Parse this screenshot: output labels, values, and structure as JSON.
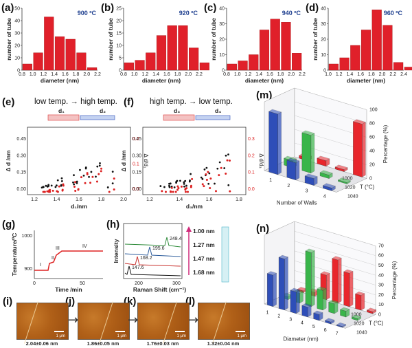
{
  "hist": [
    {
      "label": "(a)",
      "temp": "900 ºC",
      "ticks": [
        "0.8",
        "1.0",
        "1.2",
        "1.4",
        "1.6",
        "1.8",
        "2.0",
        "2.2"
      ],
      "yticks": [
        "0",
        "10",
        "20",
        "30",
        "40",
        "50"
      ],
      "values": [
        5,
        14,
        43,
        27,
        25,
        14,
        2
      ],
      "xlabel": "diameter (nm)",
      "ylabel": "number of tube"
    },
    {
      "label": "(b)",
      "temp": "920 ºC",
      "ticks": [
        "0.8",
        "1.0",
        "1.2",
        "1.4",
        "1.6",
        "1.8",
        "2.0",
        "2.2"
      ],
      "yticks": [
        "0",
        "5",
        "10",
        "15",
        "20",
        "25"
      ],
      "values": [
        3,
        4,
        7,
        14,
        18,
        18,
        9,
        3
      ],
      "xlabel": "diameter (nm)",
      "ylabel": "number of tube"
    },
    {
      "label": "(c)",
      "temp": "940 ºC",
      "ticks": [
        "0.8",
        "1.0",
        "1.2",
        "1.4",
        "1.6",
        "1.8",
        "2.0",
        "2.2"
      ],
      "yticks": [
        "0",
        "10",
        "20",
        "30",
        "40"
      ],
      "values": [
        4,
        6,
        10,
        26,
        33,
        31,
        11
      ],
      "xlabel": "diameter (nm)",
      "ylabel": "number of tube"
    },
    {
      "label": "(d)",
      "temp": "960 ºC",
      "ticks": [
        "1.0",
        "1.2",
        "1.4",
        "1.6",
        "1.8",
        "2.0",
        "2.2",
        "2.4"
      ],
      "yticks": [
        "0",
        "10",
        "20",
        "30",
        "40"
      ],
      "values": [
        4,
        8,
        16,
        26,
        39,
        29,
        5,
        2
      ],
      "xlabel": "diameter (nm)",
      "ylabel": "number of tube"
    }
  ],
  "scatter_e": {
    "label": "(e)",
    "heading": "low temp. → high temp.",
    "d_left": "d₁",
    "d_right": "d₂",
    "xticks": [
      "1.2",
      "1.4",
      "1.6",
      "1.8",
      "2.0"
    ],
    "yticks": [
      "0.00",
      "0.15",
      "0.30",
      "0.45"
    ],
    "ry": [
      "0.0",
      "0.1",
      "0.2"
    ],
    "xlabel": "d₁/nm",
    "ylabel": "Δ d /nm",
    "rylabel": "Δ d/d₁"
  },
  "scatter_f": {
    "label": "(f)",
    "heading": "high temp. → low temp.",
    "d_left": "d₃",
    "d_right": "d₄",
    "xticks": [
      "1.2",
      "1.4",
      "1.6",
      "1.8"
    ],
    "yticks": [
      "0.00",
      "0.15",
      "0.30",
      "0.45"
    ],
    "ry": [
      "0.0",
      "0.1",
      "0.2",
      "0.3"
    ],
    "xlabel": "d₃/nm",
    "ylabel": "Δ d /nm",
    "rylabel": "Δ d/d₃"
  },
  "bar3d_m": {
    "label": "(m)",
    "xlabel": "Number of Walls",
    "xcats": [
      "1",
      "2",
      "3",
      "4"
    ],
    "zlabel": "Percentage (%)",
    "zticks": [
      "0",
      "20",
      "40",
      "60",
      "80",
      "100"
    ],
    "tlabel": "T (°C)",
    "tcats": [
      "1000",
      "1020",
      "1040"
    ],
    "series": [
      {
        "name": "1000",
        "color": "#e8262c",
        "values": [
          4,
          8,
          3,
          77
        ]
      },
      {
        "name": "1020",
        "color": "#39b54a",
        "values": [
          10,
          55,
          5,
          2
        ]
      },
      {
        "name": "1040",
        "color": "#2e4eb8",
        "values": [
          88,
          25,
          10,
          4
        ]
      }
    ]
  },
  "bar3d_n": {
    "label": "(n)",
    "xlabel": "Diameter (nm)",
    "xcats": [
      "1",
      "2",
      "3",
      "4",
      "5",
      "6",
      "7"
    ],
    "zlabel": "Percentage (%)",
    "zticks": [
      "0",
      "10",
      "20",
      "30",
      "40",
      "50",
      "60",
      "70"
    ],
    "tlabel": "T (°C)",
    "tcats": [
      "1000",
      "1020",
      "1040"
    ],
    "series": [
      {
        "name": "1000",
        "color": "#e8262c",
        "values": [
          2,
          4,
          25,
          44,
          34,
          15,
          2
        ]
      },
      {
        "name": "1020",
        "color": "#39b54a",
        "values": [
          3,
          10,
          55,
          20,
          10,
          6,
          2
        ]
      },
      {
        "name": "1040",
        "color": "#2e4eb8",
        "values": [
          32,
          52,
          22,
          10,
          6,
          2,
          1
        ]
      }
    ]
  },
  "panel_g": {
    "label": "(g)",
    "ylabel": "Temperature/ºC",
    "xlabel": "Time /min",
    "yticks": [
      "900",
      "1000"
    ],
    "xticks": [
      "0",
      "50"
    ],
    "stages": [
      "I",
      "II",
      "III",
      "IV"
    ]
  },
  "panel_h": {
    "label": "(h)",
    "ylabel": "Intensity",
    "xlabel": "Raman Shift (cm⁻¹)",
    "xticks": [
      "200",
      "300"
    ],
    "lines": [
      {
        "d": "1.00 nm",
        "peak": "248.4",
        "color": "#2e8b3a"
      },
      {
        "d": "1.27 nm",
        "peak": "195.6",
        "color": "#2a5a9a"
      },
      {
        "d": "1.47 nm",
        "peak": "168.2",
        "color": "#c8302c"
      },
      {
        "d": "1.68 nm",
        "peak": "147.6",
        "color": "#111"
      }
    ]
  },
  "afm": [
    {
      "label": "(i)",
      "cap": "2.04±0.06 nm",
      "scale": "1 μm"
    },
    {
      "label": "(j)",
      "cap": "1.86±0.05 nm",
      "scale": "1 μm"
    },
    {
      "label": "(k)",
      "cap": "1.76±0.03 nm",
      "scale": "1 μm"
    },
    {
      "label": "(l)",
      "cap": "1.32±0.04 nm",
      "scale": "1 μm"
    }
  ],
  "arrows": [
    "→",
    "→",
    "→"
  ]
}
